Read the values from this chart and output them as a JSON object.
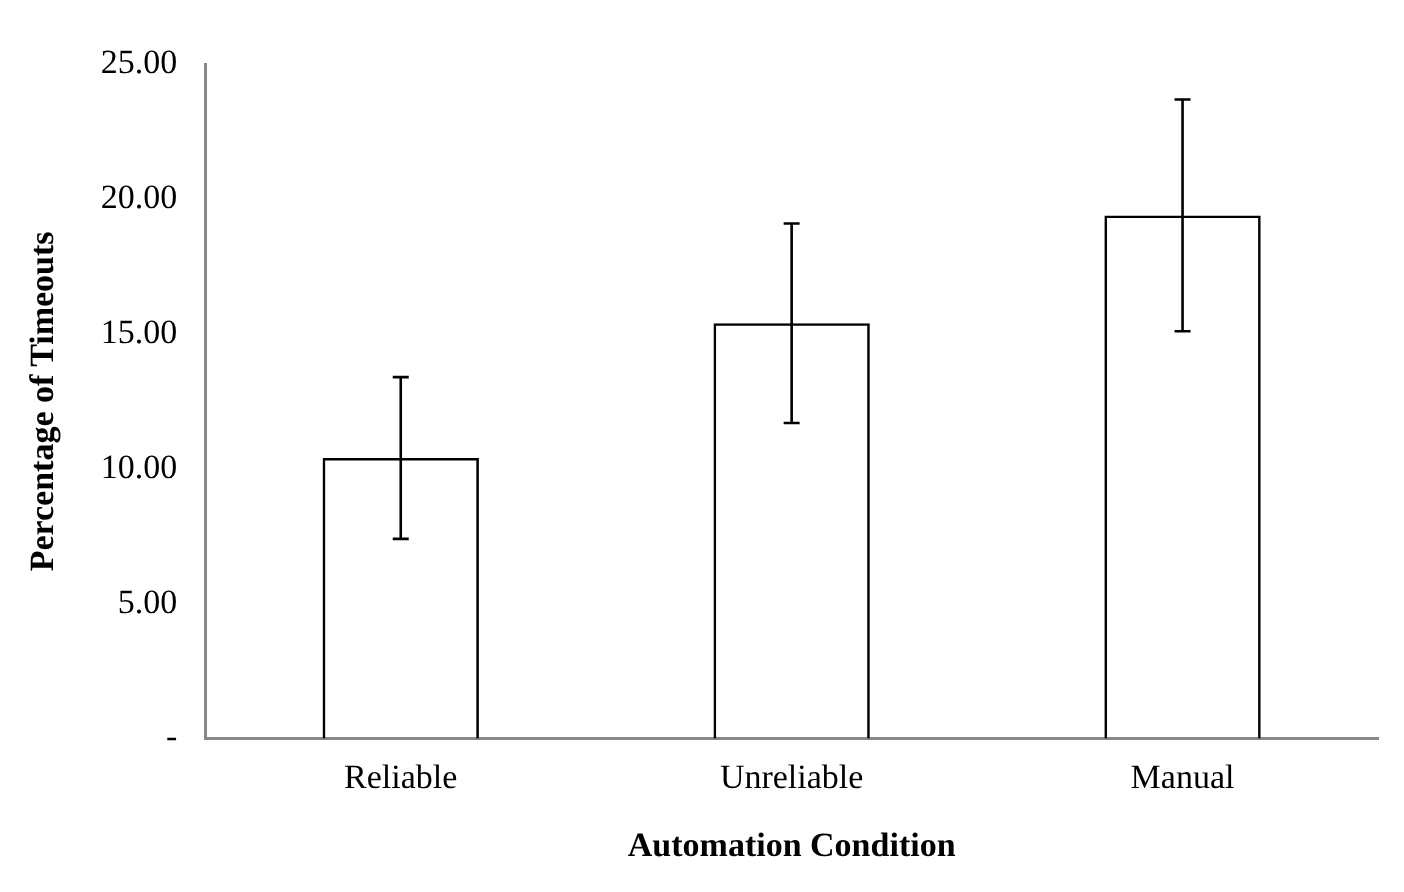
{
  "chart_data": {
    "type": "bar",
    "xlabel": "Automation Condition",
    "ylabel": "Percentage of Timeouts",
    "categories": [
      "Reliable",
      "Unreliable",
      "Manual"
    ],
    "series": [
      {
        "color": "#000000",
        "values": [
          10.4,
          15.4,
          19.4
        ],
        "errors": [
          3.0,
          3.7,
          4.3
        ]
      }
    ],
    "ylim": [
      0,
      25
    ],
    "yticks": [
      {
        "value": 0,
        "label": "-"
      },
      {
        "value": 5,
        "label": "5.00"
      },
      {
        "value": 10,
        "label": "10.00"
      },
      {
        "value": 15,
        "label": "15.00"
      },
      {
        "value": 20,
        "label": "20.00"
      },
      {
        "value": 25,
        "label": "25.00"
      }
    ],
    "grid": false,
    "legend": false
  }
}
